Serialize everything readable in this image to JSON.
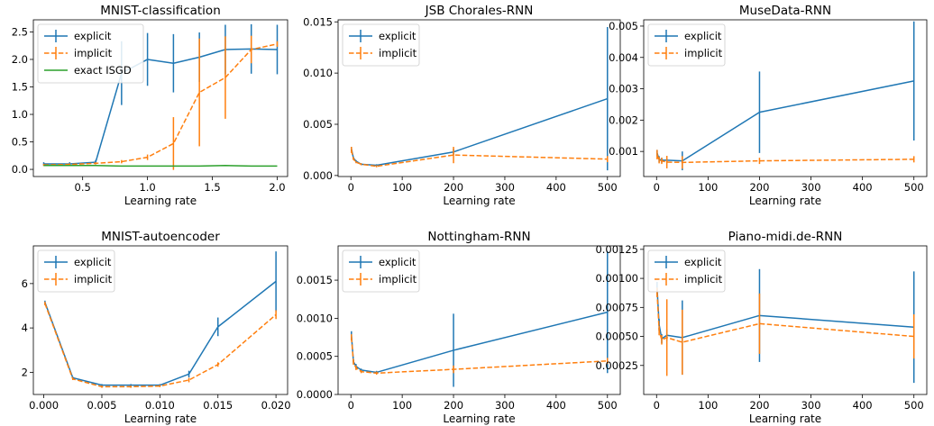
{
  "chart_data": [
    {
      "type": "line",
      "title": "MNIST-classification",
      "xlabel": "Learning rate",
      "ylabel": "",
      "xlim": [
        0.12,
        2.08
      ],
      "ylim": [
        -0.13,
        2.72
      ],
      "xticks": [
        0.5,
        1.0,
        1.5,
        2.0
      ],
      "xtick_labels": [
        "0.5",
        "1.0",
        "1.5",
        "2.0"
      ],
      "yticks": [
        0.0,
        0.5,
        1.0,
        1.5,
        2.0,
        2.5
      ],
      "ytick_labels": [
        "0.0",
        "0.5",
        "1.0",
        "1.5",
        "2.0",
        "2.5"
      ],
      "legend": "top-left",
      "series": [
        {
          "name": "explicit",
          "color": "#1f77b4",
          "dash": "solid",
          "errorbars": true,
          "x": [
            0.2,
            0.4,
            0.6,
            0.8,
            1.0,
            1.2,
            1.4,
            1.6,
            1.8,
            2.0
          ],
          "y": [
            0.1,
            0.1,
            0.13,
            1.75,
            2.0,
            1.93,
            2.04,
            2.18,
            2.19,
            2.18
          ],
          "err": [
            0.03,
            0.03,
            0.04,
            0.58,
            0.48,
            0.53,
            0.45,
            0.45,
            0.45,
            0.45
          ]
        },
        {
          "name": "implicit",
          "color": "#ff7f0e",
          "dash": "dashed",
          "errorbars": true,
          "x": [
            0.2,
            0.4,
            0.6,
            0.8,
            1.0,
            1.2,
            1.4,
            1.6,
            1.8,
            2.0
          ],
          "y": [
            0.08,
            0.09,
            0.11,
            0.14,
            0.22,
            0.47,
            1.4,
            1.67,
            2.18,
            2.28
          ],
          "err": [
            0.02,
            0.02,
            0.02,
            0.03,
            0.05,
            0.48,
            0.98,
            0.75,
            0.25,
            0.05
          ]
        },
        {
          "name": "exact ISGD",
          "color": "#2ca02c",
          "dash": "solid",
          "errorbars": false,
          "x": [
            0.2,
            0.4,
            0.6,
            0.8,
            1.0,
            1.2,
            1.4,
            1.6,
            1.8,
            2.0
          ],
          "y": [
            0.07,
            0.07,
            0.07,
            0.06,
            0.06,
            0.06,
            0.06,
            0.07,
            0.06,
            0.06
          ],
          "err": [
            0,
            0,
            0,
            0,
            0,
            0,
            0,
            0,
            0,
            0
          ]
        }
      ]
    },
    {
      "type": "line",
      "title": "JSB Chorales-RNN",
      "xlabel": "Learning rate",
      "ylabel": "",
      "xlim": [
        -25,
        525
      ],
      "ylim": [
        -0.0001,
        0.0152
      ],
      "xticks": [
        0,
        100,
        200,
        300,
        400,
        500
      ],
      "xtick_labels": [
        "0",
        "100",
        "200",
        "300",
        "400",
        "500"
      ],
      "yticks": [
        0.0,
        0.005,
        0.01,
        0.015
      ],
      "ytick_labels": [
        "0.000",
        "0.005",
        "0.010",
        "0.015"
      ],
      "legend": "top-left",
      "series": [
        {
          "name": "explicit",
          "color": "#1f77b4",
          "dash": "solid",
          "errorbars": true,
          "x": [
            1,
            5,
            10,
            20,
            50,
            200,
            500
          ],
          "y": [
            0.0026,
            0.0017,
            0.0014,
            0.0011,
            0.001,
            0.0023,
            0.0075
          ],
          "err": [
            0.0002,
            0.0001,
            0.0001,
            0.0001,
            0.0001,
            0.0003,
            0.007
          ]
        },
        {
          "name": "implicit",
          "color": "#ff7f0e",
          "dash": "dashed",
          "errorbars": true,
          "x": [
            1,
            5,
            10,
            20,
            50,
            200,
            500
          ],
          "y": [
            0.0025,
            0.0016,
            0.0013,
            0.0011,
            0.0009,
            0.002,
            0.0016
          ],
          "err": [
            0.0003,
            0.0001,
            0.0001,
            0.0001,
            0.0001,
            0.0008,
            0.0003
          ]
        }
      ]
    },
    {
      "type": "line",
      "title": "MuseData-RNN",
      "xlabel": "Learning rate",
      "ylabel": "",
      "xlim": [
        -25,
        525
      ],
      "ylim": [
        0.0002,
        0.0052
      ],
      "xticks": [
        0,
        100,
        200,
        300,
        400,
        500
      ],
      "xtick_labels": [
        "0",
        "100",
        "200",
        "300",
        "400",
        "500"
      ],
      "yticks": [
        0.001,
        0.002,
        0.003,
        0.004,
        0.005
      ],
      "ytick_labels": [
        "0.001",
        "0.002",
        "0.003",
        "0.004",
        "0.005"
      ],
      "legend": "top-left",
      "series": [
        {
          "name": "explicit",
          "color": "#1f77b4",
          "dash": "solid",
          "errorbars": true,
          "x": [
            1,
            5,
            10,
            20,
            50,
            200,
            500
          ],
          "y": [
            0.00095,
            0.00075,
            0.00072,
            0.00072,
            0.0007,
            0.00225,
            0.00325
          ],
          "err": [
            0.0001,
            0.0001,
            8e-05,
            8e-05,
            0.0003,
            0.0013,
            0.0019
          ]
        },
        {
          "name": "implicit",
          "color": "#ff7f0e",
          "dash": "dashed",
          "errorbars": true,
          "x": [
            1,
            5,
            10,
            20,
            50,
            200,
            500
          ],
          "y": [
            0.0009,
            0.00072,
            0.0007,
            0.00066,
            0.00065,
            0.0007,
            0.00075
          ],
          "err": [
            0.00015,
            0.0001,
            0.0001,
            0.0002,
            0.0002,
            0.0001,
            0.0001
          ]
        }
      ]
    },
    {
      "type": "line",
      "title": "MNIST-autoencoder",
      "xlabel": "Learning rate",
      "ylabel": "",
      "xlim": [
        -0.0009,
        0.021
      ],
      "ylim": [
        1.0,
        7.7
      ],
      "xticks": [
        0.0,
        0.005,
        0.01,
        0.015,
        0.02
      ],
      "xtick_labels": [
        "0.000",
        "0.005",
        "0.010",
        "0.015",
        "0.020"
      ],
      "yticks": [
        2,
        4,
        6
      ],
      "ytick_labels": [
        "2",
        "4",
        "6"
      ],
      "legend": "top-left",
      "series": [
        {
          "name": "explicit",
          "color": "#1f77b4",
          "dash": "solid",
          "errorbars": true,
          "x": [
            0.0001,
            0.0025,
            0.005,
            0.0075,
            0.01,
            0.0125,
            0.015,
            0.02
          ],
          "y": [
            5.15,
            1.75,
            1.42,
            1.42,
            1.42,
            1.92,
            4.05,
            6.1
          ],
          "err": [
            0.08,
            0.05,
            0.05,
            0.05,
            0.05,
            0.15,
            0.42,
            1.35
          ]
        },
        {
          "name": "implicit",
          "color": "#ff7f0e",
          "dash": "dashed",
          "errorbars": true,
          "x": [
            0.0001,
            0.0025,
            0.005,
            0.0075,
            0.01,
            0.0125,
            0.015,
            0.02
          ],
          "y": [
            5.1,
            1.7,
            1.35,
            1.35,
            1.38,
            1.65,
            2.35,
            4.6
          ],
          "err": [
            0.08,
            0.05,
            0.05,
            0.05,
            0.05,
            0.1,
            0.1,
            0.2
          ]
        }
      ]
    },
    {
      "type": "line",
      "title": "Nottingham-RNN",
      "xlabel": "Learning rate",
      "ylabel": "",
      "xlim": [
        -25,
        525
      ],
      "ylim": [
        0.0,
        0.00195
      ],
      "xticks": [
        0,
        100,
        200,
        300,
        400,
        500
      ],
      "xtick_labels": [
        "0",
        "100",
        "200",
        "300",
        "400",
        "500"
      ],
      "yticks": [
        0.0,
        0.0005,
        0.001,
        0.0015
      ],
      "ytick_labels": [
        "0.0000",
        "0.0005",
        "0.0010",
        "0.0015"
      ],
      "legend": "top-left",
      "series": [
        {
          "name": "explicit",
          "color": "#1f77b4",
          "dash": "solid",
          "errorbars": true,
          "x": [
            1,
            5,
            10,
            20,
            50,
            200,
            500
          ],
          "y": [
            0.00078,
            0.00043,
            0.00037,
            0.00032,
            0.00029,
            0.00058,
            0.00108
          ],
          "err": [
            5e-05,
            3e-05,
            3e-05,
            2e-05,
            2e-05,
            0.00048,
            0.0008
          ]
        },
        {
          "name": "implicit",
          "color": "#ff7f0e",
          "dash": "dashed",
          "errorbars": true,
          "x": [
            1,
            5,
            10,
            20,
            50,
            200,
            500
          ],
          "y": [
            0.00075,
            0.00042,
            0.00035,
            0.0003,
            0.00028,
            0.00033,
            0.00044
          ],
          "err": [
            4e-05,
            3e-05,
            3e-05,
            2e-05,
            2e-05,
            5e-05,
            4e-05
          ]
        }
      ]
    },
    {
      "type": "line",
      "title": "Piano-midi.de-RNN",
      "xlabel": "Learning rate",
      "ylabel": "",
      "xlim": [
        -25,
        525
      ],
      "ylim": [
        0.0,
        0.00128
      ],
      "xticks": [
        0,
        100,
        200,
        300,
        400,
        500
      ],
      "xtick_labels": [
        "0",
        "100",
        "200",
        "300",
        "400",
        "500"
      ],
      "yticks": [
        0.00025,
        0.0005,
        0.00075,
        0.001,
        0.00125
      ],
      "ytick_labels": [
        "0.00025",
        "0.00050",
        "0.00075",
        "0.00100",
        "0.00125"
      ],
      "legend": "top-left",
      "series": [
        {
          "name": "explicit",
          "color": "#1f77b4",
          "dash": "solid",
          "errorbars": true,
          "x": [
            1,
            5,
            10,
            20,
            50,
            200,
            500
          ],
          "y": [
            0.00092,
            0.0006,
            0.00048,
            0.00051,
            0.00049,
            0.00068,
            0.00058
          ],
          "err": [
            5e-05,
            5e-05,
            4e-05,
            5e-05,
            0.00032,
            0.0004,
            0.00048
          ]
        },
        {
          "name": "implicit",
          "color": "#ff7f0e",
          "dash": "dashed",
          "errorbars": true,
          "x": [
            1,
            5,
            10,
            20,
            50,
            200,
            500
          ],
          "y": [
            0.00088,
            0.00055,
            0.00047,
            0.00049,
            0.00045,
            0.00061,
            0.0005
          ],
          "err": [
            4e-05,
            4e-05,
            4e-05,
            0.00033,
            0.00028,
            0.00026,
            0.00019
          ]
        }
      ]
    }
  ]
}
